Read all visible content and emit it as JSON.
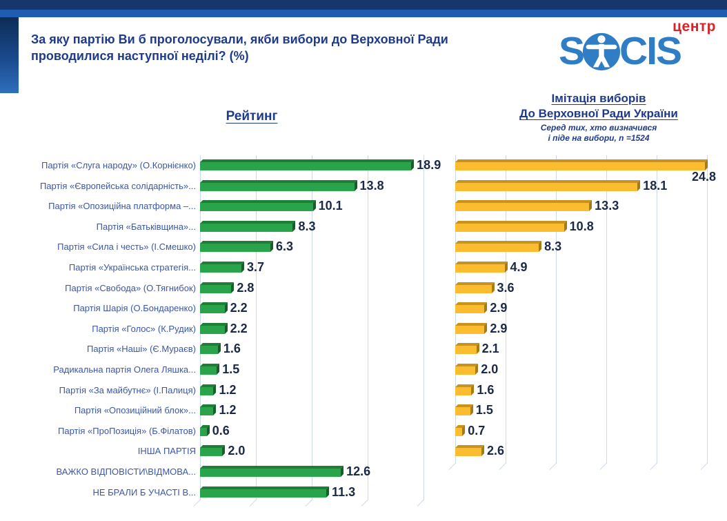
{
  "header": {
    "title_line1": "За яку партію Ви б проголосували, якби вибори до Верховної Ради",
    "title_line2": "проводилися наступної неділі? (%)",
    "logo": {
      "brand_prefix": "S",
      "brand_suffix": "CIS",
      "brand_super": "центр",
      "icon": "vitruvian-man-icon"
    }
  },
  "colors": {
    "band1": "#17366b",
    "band2": "#1f5db3",
    "title": "#1e3a8c",
    "label": "#3a57a7",
    "value_text": "#1b2947",
    "grid": "#ccd9ef",
    "green": "#2aa44a",
    "green_top": "#1d7e36",
    "green_side": "#15602a",
    "yellow": "#fbbd2f",
    "yellow_top": "#c8921e",
    "yellow_side": "#a67a14",
    "logo_blue": "#2f7dc4",
    "logo_red": "#d8232a"
  },
  "chart_data": {
    "type": "bar",
    "orientation": "horizontal",
    "grid": true,
    "legend_position": "none",
    "panels": [
      {
        "title": "Рейтинг",
        "series_color": "#2aa44a",
        "xlim": [
          0,
          20
        ],
        "gridline_step": 5
      },
      {
        "title_line1": "Імітація виборів",
        "title_line2": "До Верховної Ради України",
        "subtitle_line1": "Серед тих, хто визначився",
        "subtitle_line2": "і піде на вибори, n =1524",
        "series_color": "#fbbd2f",
        "xlim": [
          0,
          25
        ],
        "gridline_step": 5,
        "label_below_indices": [
          0
        ]
      }
    ],
    "categories": [
      "Партія «Слуга народу» (О.Корнієнко)",
      "Партія «Європейська солідарність»...",
      "Партія «Опозиційна платформа –...",
      "Партія «Батьківщина»...",
      "Партія «Сила і честь» (І.Смешко)",
      "Партія «Українська стратегія...",
      "Партія «Свобода» (О.Тягнибок)",
      "Партія Шарія (О.Бондаренко)",
      "Партія «Голос» (К.Рудик)",
      "Партія «Наші» (Є.Мураєв)",
      "Радикальна партія Олега Ляшка...",
      "Партія «За майбутнє» (І.Палиця)",
      "Партія «Опозиційний блок»...",
      "Партія «ПроПозиція» (Б.Філатов)",
      "ІНША ПАРТІЯ",
      "ВАЖКО ВІДПОВІСТИ\\ВІДМОВА...",
      "НЕ БРАЛИ Б УЧАСТІ В..."
    ],
    "series": [
      {
        "name": "Рейтинг",
        "values": [
          18.9,
          13.8,
          10.1,
          8.3,
          6.3,
          3.7,
          2.8,
          2.2,
          2.2,
          1.6,
          1.5,
          1.2,
          1.2,
          0.6,
          2.0,
          12.6,
          11.3
        ]
      },
      {
        "name": "Імітація виборів",
        "values": [
          24.8,
          18.1,
          13.3,
          10.8,
          8.3,
          4.9,
          3.6,
          2.9,
          2.9,
          2.1,
          2.0,
          1.6,
          1.5,
          0.7,
          2.6,
          null,
          null
        ]
      }
    ]
  }
}
